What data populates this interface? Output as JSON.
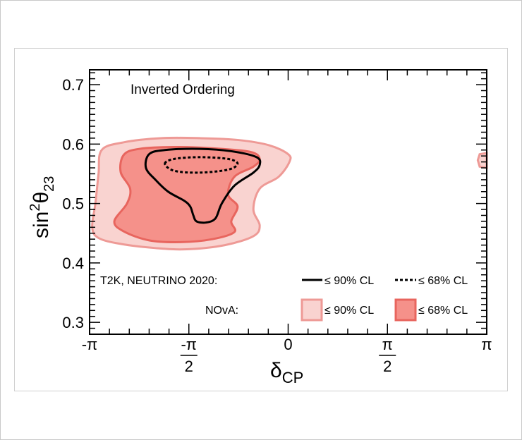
{
  "chart_data": {
    "type": "contour",
    "title": "",
    "annotation": "Inverted Ordering",
    "xlabel": "δ",
    "xlabel_sub": "CP",
    "ylabel": "sin",
    "ylabel_sup": "2",
    "ylabel_theta": "θ",
    "ylabel_sub": "23",
    "xlim": [
      -3.1416,
      3.1416
    ],
    "ylim": [
      0.28,
      0.725
    ],
    "yticks": [
      {
        "value": 0.3,
        "label": "0.3"
      },
      {
        "value": 0.4,
        "label": "0.4"
      },
      {
        "value": 0.5,
        "label": "0.5"
      },
      {
        "value": 0.6,
        "label": "0.6"
      },
      {
        "value": 0.7,
        "label": "0.7"
      }
    ],
    "xticks": [
      {
        "value": -3.1416,
        "label": "-π",
        "frac": false
      },
      {
        "value": -1.5708,
        "label_sign": "-",
        "label_num": "π",
        "label_den": "2",
        "frac": true
      },
      {
        "value": 0,
        "label": "0",
        "frac": false
      },
      {
        "value": 1.5708,
        "label_num": "π",
        "label_den": "2",
        "frac": true
      },
      {
        "value": 3.1416,
        "label": "π",
        "frac": false
      }
    ],
    "series": [
      {
        "name": "NOvA ≤ 90% CL",
        "style": "filled-light",
        "color": "#f9d3d0",
        "edge": "#ee9a96",
        "points": [
          [
            -2.95,
            0.59
          ],
          [
            -2.6,
            0.603
          ],
          [
            -2.0,
            0.61
          ],
          [
            -1.4,
            0.61
          ],
          [
            -0.8,
            0.607
          ],
          [
            -0.3,
            0.598
          ],
          [
            0.0,
            0.583
          ],
          [
            0.02,
            0.57
          ],
          [
            -0.15,
            0.545
          ],
          [
            -0.45,
            0.525
          ],
          [
            -0.55,
            0.49
          ],
          [
            -0.45,
            0.463
          ],
          [
            -0.55,
            0.445
          ],
          [
            -1.0,
            0.43
          ],
          [
            -1.6,
            0.423
          ],
          [
            -2.1,
            0.425
          ],
          [
            -2.65,
            0.432
          ],
          [
            -3.0,
            0.442
          ],
          [
            -3.1,
            0.46
          ],
          [
            -3.05,
            0.5
          ],
          [
            -3.0,
            0.55
          ]
        ]
      },
      {
        "name": "NOvA ≤ 68% CL",
        "style": "filled-dark",
        "color": "#f5918a",
        "edge": "#e8655e",
        "points": [
          [
            -2.6,
            0.582
          ],
          [
            -2.35,
            0.592
          ],
          [
            -1.8,
            0.595
          ],
          [
            -1.2,
            0.593
          ],
          [
            -0.6,
            0.587
          ],
          [
            -0.45,
            0.575
          ],
          [
            -0.55,
            0.562
          ],
          [
            -0.85,
            0.545
          ],
          [
            -0.95,
            0.515
          ],
          [
            -0.8,
            0.495
          ],
          [
            -0.9,
            0.47
          ],
          [
            -0.85,
            0.452
          ],
          [
            -1.2,
            0.44
          ],
          [
            -1.7,
            0.435
          ],
          [
            -2.2,
            0.438
          ],
          [
            -2.6,
            0.453
          ],
          [
            -2.75,
            0.47
          ],
          [
            -2.55,
            0.5
          ],
          [
            -2.5,
            0.525
          ],
          [
            -2.65,
            0.553
          ]
        ]
      },
      {
        "name": "NOvA ≤ 90% CL (wrap at +π)",
        "style": "filled-light",
        "color": "#f9d3d0",
        "edge": "#ee9a96",
        "points": [
          [
            3.1416,
            0.585
          ],
          [
            3.03,
            0.583
          ],
          [
            3.0,
            0.573
          ],
          [
            3.03,
            0.562
          ],
          [
            3.1416,
            0.56
          ]
        ]
      },
      {
        "name": "T2K ≤ 90% CL",
        "style": "solid-line",
        "color": "#000000",
        "points": [
          [
            -2.2,
            0.583
          ],
          [
            -1.95,
            0.59
          ],
          [
            -1.4,
            0.592
          ],
          [
            -0.9,
            0.588
          ],
          [
            -0.5,
            0.578
          ],
          [
            -0.45,
            0.565
          ],
          [
            -0.55,
            0.552
          ],
          [
            -0.85,
            0.53
          ],
          [
            -1.05,
            0.5
          ],
          [
            -1.15,
            0.475
          ],
          [
            -1.3,
            0.468
          ],
          [
            -1.45,
            0.47
          ],
          [
            -1.5,
            0.48
          ],
          [
            -1.55,
            0.495
          ],
          [
            -1.65,
            0.505
          ],
          [
            -1.9,
            0.52
          ],
          [
            -2.1,
            0.54
          ],
          [
            -2.25,
            0.56
          ]
        ]
      },
      {
        "name": "T2K ≤ 68% CL",
        "style": "dotted-line",
        "color": "#000000",
        "points": [
          [
            -1.95,
            0.567
          ],
          [
            -1.8,
            0.575
          ],
          [
            -1.4,
            0.578
          ],
          [
            -0.95,
            0.575
          ],
          [
            -0.8,
            0.567
          ],
          [
            -0.95,
            0.557
          ],
          [
            -1.4,
            0.552
          ],
          [
            -1.8,
            0.555
          ]
        ]
      }
    ],
    "legend": {
      "placement": "bottom",
      "row1_label": "T2K, NEUTRINO 2020:",
      "row2_label": "NOvA:",
      "t2k_90": "≤ 90% CL",
      "t2k_68": "≤ 68% CL",
      "nova_90": "≤ 90% CL",
      "nova_68": "≤ 68% CL"
    }
  }
}
